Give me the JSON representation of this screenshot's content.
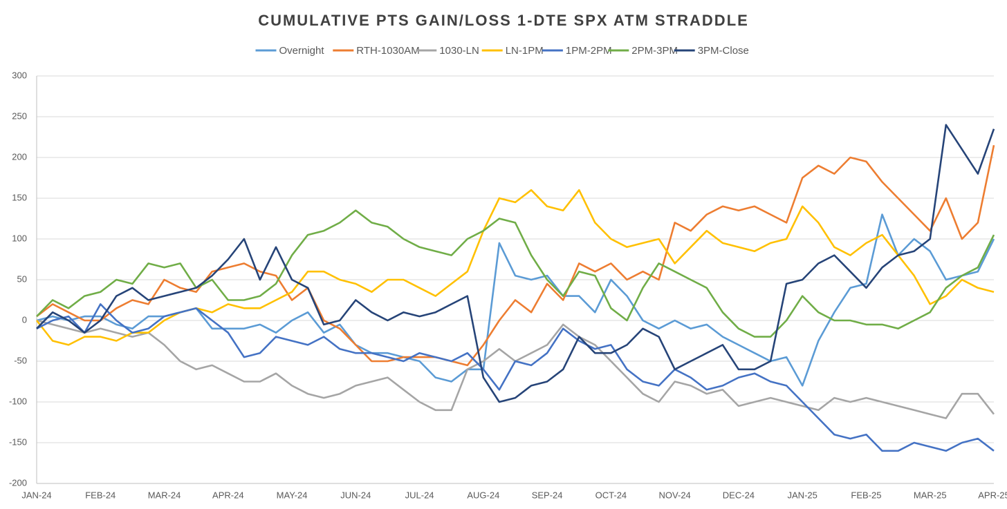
{
  "chart_data": {
    "type": "line",
    "title": "CUMULATIVE PTS GAIN/LOSS 1-DTE SPX ATM STRADDLE",
    "categories": [
      "JAN-24",
      null,
      null,
      null,
      "FEB-24",
      null,
      null,
      null,
      "MAR-24",
      null,
      null,
      null,
      "APR-24",
      null,
      null,
      null,
      "MAY-24",
      null,
      null,
      null,
      "JUN-24",
      null,
      null,
      null,
      "JUL-24",
      null,
      null,
      null,
      "AUG-24",
      null,
      null,
      null,
      "SEP-24",
      null,
      null,
      null,
      "OCT-24",
      null,
      null,
      null,
      "NOV-24",
      null,
      null,
      null,
      "DEC-24",
      null,
      null,
      null,
      "JAN-25",
      null,
      null,
      null,
      "FEB-25",
      null,
      null,
      null,
      "MAR-25",
      null,
      null,
      null,
      "APR-25"
    ],
    "series": [
      {
        "name": "Overnight",
        "color": "#5b9bd5",
        "values": [
          0,
          5,
          0,
          5,
          5,
          -5,
          -10,
          5,
          5,
          10,
          15,
          -10,
          -10,
          -10,
          -5,
          -15,
          0,
          10,
          -15,
          -5,
          -30,
          -40,
          -40,
          -45,
          -50,
          -70,
          -75,
          -60,
          -60,
          95,
          55,
          50,
          55,
          30,
          30,
          10,
          50,
          30,
          0,
          -10,
          0,
          -10,
          -5,
          -20,
          -30,
          -40,
          -50,
          -45,
          -80,
          -25,
          10,
          40,
          45,
          130,
          80,
          100,
          85,
          50,
          55,
          60,
          100
        ]
      },
      {
        "name": "RTH-1030AM",
        "color": "#ed7d31",
        "values": [
          5,
          20,
          10,
          0,
          0,
          15,
          25,
          20,
          50,
          40,
          35,
          60,
          65,
          70,
          60,
          55,
          25,
          40,
          0,
          -10,
          -30,
          -50,
          -50,
          -45,
          -45,
          -45,
          -50,
          -55,
          -30,
          0,
          25,
          10,
          45,
          25,
          70,
          60,
          70,
          50,
          60,
          50,
          120,
          110,
          130,
          140,
          135,
          140,
          130,
          120,
          175,
          190,
          180,
          200,
          195,
          170,
          150,
          130,
          110,
          150,
          100,
          120,
          215
        ]
      },
      {
        "name": "1030-LN",
        "color": "#a5a5a5",
        "values": [
          0,
          -5,
          -10,
          -15,
          -10,
          -15,
          -20,
          -15,
          -30,
          -50,
          -60,
          -55,
          -65,
          -75,
          -75,
          -65,
          -80,
          -90,
          -95,
          -90,
          -80,
          -75,
          -70,
          -85,
          -100,
          -110,
          -110,
          -60,
          -50,
          -35,
          -50,
          -40,
          -30,
          -5,
          -20,
          -30,
          -50,
          -70,
          -90,
          -100,
          -75,
          -80,
          -90,
          -85,
          -105,
          -100,
          -95,
          -100,
          -105,
          -110,
          -95,
          -100,
          -95,
          -100,
          -105,
          -110,
          -115,
          -120,
          -90,
          -90,
          -115
        ]
      },
      {
        "name": "LN-1PM",
        "color": "#ffc000",
        "values": [
          0,
          -25,
          -30,
          -20,
          -20,
          -25,
          -15,
          -15,
          0,
          10,
          15,
          10,
          20,
          15,
          15,
          25,
          35,
          60,
          60,
          50,
          45,
          35,
          50,
          50,
          40,
          30,
          45,
          60,
          110,
          150,
          145,
          160,
          140,
          135,
          160,
          120,
          100,
          90,
          95,
          100,
          70,
          90,
          110,
          95,
          90,
          85,
          95,
          100,
          140,
          120,
          90,
          80,
          95,
          105,
          80,
          55,
          20,
          30,
          50,
          40,
          35
        ]
      },
      {
        "name": "1PM-2PM",
        "color": "#4472c4",
        "values": [
          -10,
          0,
          5,
          -15,
          20,
          0,
          -15,
          -10,
          5,
          10,
          15,
          0,
          -15,
          -45,
          -40,
          -20,
          -25,
          -30,
          -20,
          -35,
          -40,
          -40,
          -45,
          -50,
          -40,
          -45,
          -50,
          -40,
          -60,
          -85,
          -50,
          -55,
          -40,
          -10,
          -25,
          -35,
          -30,
          -60,
          -75,
          -80,
          -60,
          -70,
          -85,
          -80,
          -70,
          -65,
          -75,
          -80,
          -100,
          -120,
          -140,
          -145,
          -140,
          -160,
          -160,
          -150,
          -155,
          -160,
          -150,
          -145,
          -160
        ]
      },
      {
        "name": "2PM-3PM",
        "color": "#70ad47",
        "values": [
          5,
          25,
          15,
          30,
          35,
          50,
          45,
          70,
          65,
          70,
          40,
          50,
          25,
          25,
          30,
          45,
          80,
          105,
          110,
          120,
          135,
          120,
          115,
          100,
          90,
          85,
          80,
          100,
          110,
          125,
          120,
          80,
          50,
          30,
          60,
          55,
          15,
          0,
          40,
          70,
          60,
          50,
          40,
          10,
          -10,
          -20,
          -20,
          0,
          30,
          10,
          0,
          0,
          -5,
          -5,
          -10,
          0,
          10,
          40,
          55,
          65,
          105
        ]
      },
      {
        "name": "3PM-Close",
        "color": "#264478",
        "values": [
          -10,
          10,
          0,
          -15,
          0,
          30,
          40,
          25,
          30,
          35,
          40,
          55,
          75,
          100,
          50,
          90,
          50,
          40,
          -5,
          0,
          25,
          10,
          0,
          10,
          5,
          10,
          20,
          30,
          -70,
          -100,
          -95,
          -80,
          -75,
          -60,
          -20,
          -40,
          -40,
          -30,
          -10,
          -20,
          -60,
          -50,
          -40,
          -30,
          -60,
          -60,
          -50,
          45,
          50,
          70,
          80,
          60,
          40,
          65,
          80,
          85,
          100,
          240,
          210,
          180,
          235
        ]
      }
    ],
    "ylim": [
      -200,
      300
    ],
    "yticks": [
      -200,
      -150,
      -100,
      -50,
      0,
      50,
      100,
      150,
      200,
      250,
      300
    ],
    "grid": true,
    "legend": "top"
  }
}
